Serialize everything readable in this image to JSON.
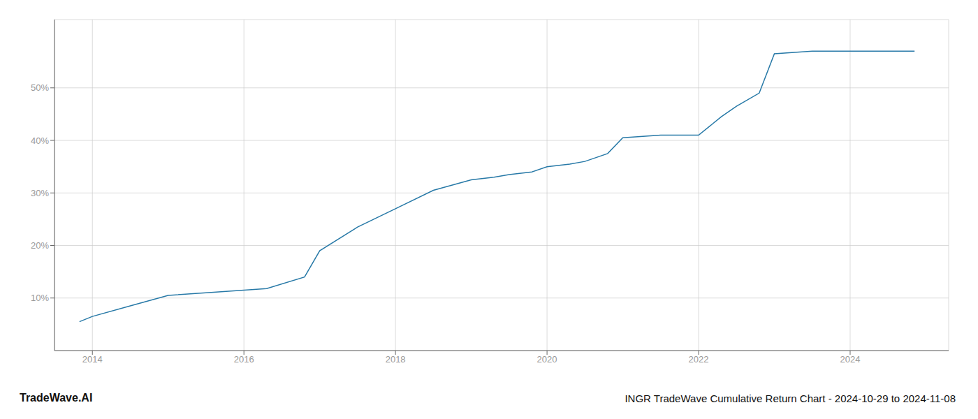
{
  "chart_data": {
    "type": "line",
    "title": "TradeWave.AI",
    "subtitle": "INGR TradeWave Cumulative Return Chart - 2024-10-29 to 2024-11-08",
    "x": [
      2013.83,
      2014.0,
      2014.5,
      2015.0,
      2015.5,
      2016.0,
      2016.3,
      2016.8,
      2017.0,
      2017.5,
      2018.0,
      2018.5,
      2019.0,
      2019.3,
      2019.5,
      2019.8,
      2020.0,
      2020.3,
      2020.5,
      2020.8,
      2021.0,
      2021.5,
      2022.0,
      2022.3,
      2022.5,
      2022.8,
      2023.0,
      2023.5,
      2023.7,
      2024.0,
      2024.5,
      2024.85
    ],
    "values": [
      5.5,
      6.5,
      8.5,
      10.5,
      11.0,
      11.5,
      11.8,
      14.0,
      19.0,
      23.5,
      27.0,
      30.5,
      32.5,
      33.0,
      33.5,
      34.0,
      35.0,
      35.5,
      36.0,
      37.5,
      40.5,
      41.0,
      41.0,
      44.5,
      46.5,
      49.0,
      56.5,
      57.0,
      57.0,
      57.0,
      57.0,
      57.0
    ],
    "color": "#2779a7",
    "marker": "none",
    "xlim": [
      2013.5,
      2025.3
    ],
    "ylim": [
      0,
      63
    ],
    "xticks": [
      2014,
      2016,
      2018,
      2020,
      2022,
      2024
    ],
    "yticks": [
      {
        "value": 10,
        "label": "10%"
      },
      {
        "value": 20,
        "label": "20%"
      },
      {
        "value": 30,
        "label": "30%"
      },
      {
        "value": 40,
        "label": "40%"
      },
      {
        "value": 50,
        "label": "50%"
      }
    ],
    "grid": true
  }
}
